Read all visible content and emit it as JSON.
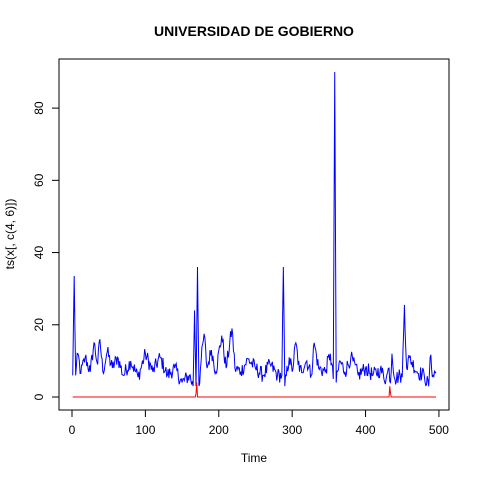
{
  "chart_data": {
    "type": "line",
    "title": "UNIVERSIDAD DE GOBIERNO",
    "xlabel": "Time",
    "ylabel": "ts(x[, c(4, 6)])",
    "xlim": [
      0,
      496
    ],
    "ylim": [
      0,
      90
    ],
    "x_ticks": [
      0,
      100,
      200,
      300,
      400,
      500
    ],
    "y_ticks": [
      0,
      20,
      40,
      60,
      80
    ],
    "grid": false,
    "legend": "none",
    "series": [
      {
        "color": "#0000ff",
        "n": 496,
        "baseline": 7.5,
        "anchors": [
          [
            1,
            6.0
          ],
          [
            3,
            33.5
          ],
          [
            5,
            6.0
          ],
          [
            8,
            12.0
          ],
          [
            12,
            6.5
          ],
          [
            18,
            11.0
          ],
          [
            25,
            7.0
          ],
          [
            30,
            15.0
          ],
          [
            35,
            9.0
          ],
          [
            38,
            16.0
          ],
          [
            42,
            7.0
          ],
          [
            48,
            12.5
          ],
          [
            55,
            8.0
          ],
          [
            62,
            11.0
          ],
          [
            70,
            6.0
          ],
          [
            80,
            10.0
          ],
          [
            90,
            5.5
          ],
          [
            100,
            12.0
          ],
          [
            110,
            7.0
          ],
          [
            120,
            11.0
          ],
          [
            130,
            6.0
          ],
          [
            140,
            8.0
          ],
          [
            150,
            4.0
          ],
          [
            160,
            6.0
          ],
          [
            165,
            3.0
          ],
          [
            167,
            24.0
          ],
          [
            169,
            3.0
          ],
          [
            171,
            36.0
          ],
          [
            173,
            3.0
          ],
          [
            176,
            10.0
          ],
          [
            180,
            17.5
          ],
          [
            184,
            8.0
          ],
          [
            190,
            13.0
          ],
          [
            196,
            7.0
          ],
          [
            204,
            17.0
          ],
          [
            210,
            8.0
          ],
          [
            218,
            19.0
          ],
          [
            222,
            8.0
          ],
          [
            230,
            7.0
          ],
          [
            240,
            10.5
          ],
          [
            250,
            8.0
          ],
          [
            260,
            6.0
          ],
          [
            270,
            9.0
          ],
          [
            280,
            6.0
          ],
          [
            286,
            6.0
          ],
          [
            288,
            36.0
          ],
          [
            290,
            3.0
          ],
          [
            296,
            11.0
          ],
          [
            300,
            7.0
          ],
          [
            305,
            15.0
          ],
          [
            310,
            7.0
          ],
          [
            320,
            10.0
          ],
          [
            326,
            6.0
          ],
          [
            330,
            15.0
          ],
          [
            336,
            8.0
          ],
          [
            345,
            7.0
          ],
          [
            352,
            12.0
          ],
          [
            356,
            5.0
          ],
          [
            358,
            90.0
          ],
          [
            360,
            4.0
          ],
          [
            365,
            10.0
          ],
          [
            372,
            7.0
          ],
          [
            380,
            11.0
          ],
          [
            390,
            6.0
          ],
          [
            400,
            8.0
          ],
          [
            410,
            6.0
          ],
          [
            420,
            7.5
          ],
          [
            428,
            5.0
          ],
          [
            432,
            8.0
          ],
          [
            434,
            4.0
          ],
          [
            436,
            12.0
          ],
          [
            440,
            5.0
          ],
          [
            447,
            6.0
          ],
          [
            450,
            5.5
          ],
          [
            453,
            25.5
          ],
          [
            456,
            8.0
          ],
          [
            460,
            11.0
          ],
          [
            470,
            7.0
          ],
          [
            480,
            6.0
          ],
          [
            486,
            3.0
          ],
          [
            488,
            11.0
          ],
          [
            492,
            6.0
          ],
          [
            496,
            7.0
          ]
        ]
      },
      {
        "color": "#ff0000",
        "n": 496,
        "baseline": 0,
        "anchors": [
          [
            1,
            0
          ],
          [
            168,
            0
          ],
          [
            169,
            1.0
          ],
          [
            170,
            4.0
          ],
          [
            171,
            0
          ],
          [
            432,
            0
          ],
          [
            433,
            3.0
          ],
          [
            434,
            1.0
          ],
          [
            435,
            0
          ],
          [
            496,
            0
          ]
        ]
      }
    ]
  }
}
